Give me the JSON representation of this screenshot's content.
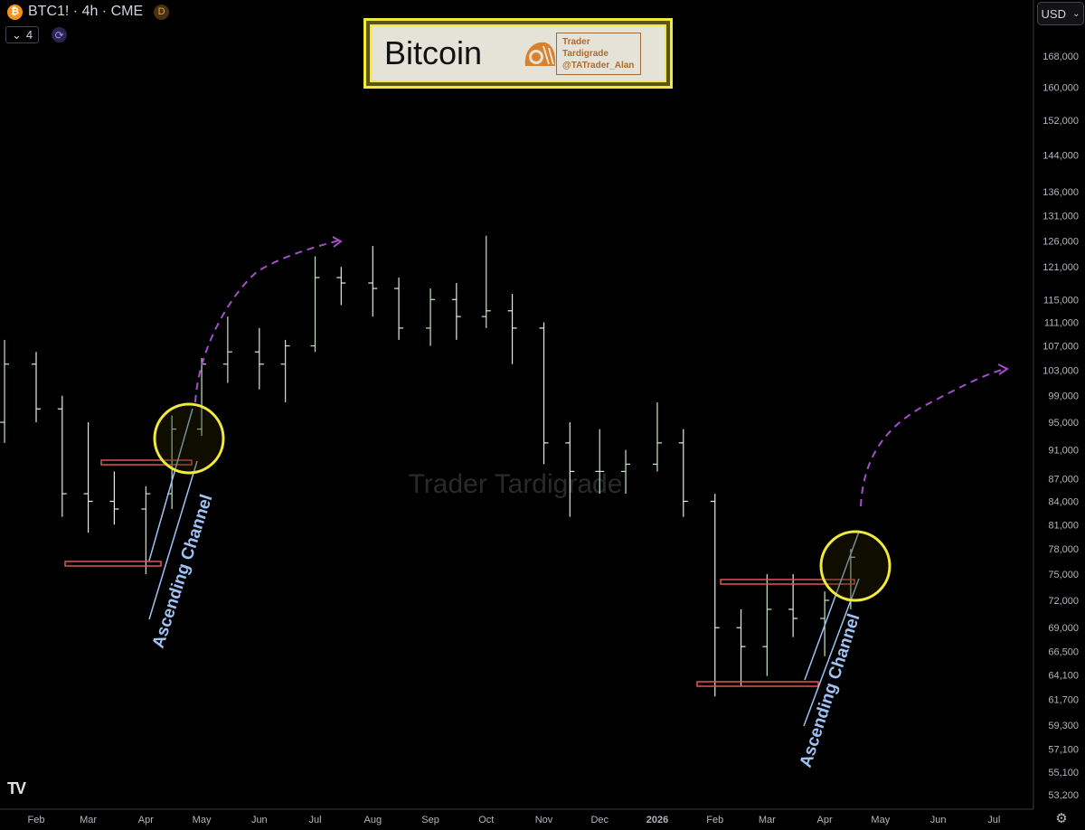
{
  "header": {
    "symbol": "BTC1! · 4h · CME",
    "coin_icon": "bitcoin-icon",
    "badge": "D",
    "collapse_count": "4",
    "currency": "USD"
  },
  "banner": {
    "title": "Bitcoin",
    "author_line1": "Trader Tardigrade",
    "author_line2": "@TATrader_Alan",
    "border_color": "#f2ea3a"
  },
  "watermark": "Trader Tardigrade",
  "annotations": {
    "channel_label_1": "Ascending Channel",
    "channel_label_2": "Ascending Channel",
    "support_color": "#e05555",
    "channel_color": "#9fc3f5",
    "circle_color": "#f2ea3a",
    "arrow_color": "#a64dcc"
  },
  "chart_data": {
    "type": "candlestick",
    "yscale": "log",
    "ylim": [
      52000,
      172000
    ],
    "xlim": [
      "2025-01-13",
      "2026-07-20"
    ],
    "grid": false,
    "y_ticks": [
      168000,
      160000,
      152000,
      144000,
      136000,
      131000,
      126000,
      121000,
      115000,
      111000,
      107000,
      103000,
      99000,
      95000,
      91000,
      87000,
      84000,
      81000,
      78000,
      75000,
      72000,
      69000,
      66500,
      64100,
      61700,
      59300,
      57100,
      55100,
      53200
    ],
    "y_tick_labels": [
      "168,000",
      "160,000",
      "152,000",
      "144,000",
      "136,000",
      "131,000",
      "126,000",
      "121,000",
      "115,000",
      "111,000",
      "107,000",
      "103,000",
      "99,000",
      "95,000",
      "91,000",
      "87,000",
      "84,000",
      "81,000",
      "78,000",
      "75,000",
      "72,000",
      "69,000",
      "66,500",
      "64,100",
      "61,700",
      "59,300",
      "57,100",
      "55,100",
      "53,200"
    ],
    "x_ticks": [
      {
        "date": "2025-02-01",
        "label": "Feb"
      },
      {
        "date": "2025-03-01",
        "label": "Mar"
      },
      {
        "date": "2025-04-01",
        "label": "Apr"
      },
      {
        "date": "2025-05-01",
        "label": "May"
      },
      {
        "date": "2025-06-01",
        "label": "Jun"
      },
      {
        "date": "2025-07-01",
        "label": "Jul"
      },
      {
        "date": "2025-08-01",
        "label": "Aug"
      },
      {
        "date": "2025-09-01",
        "label": "Sep"
      },
      {
        "date": "2025-10-01",
        "label": "Oct"
      },
      {
        "date": "2025-11-01",
        "label": "Nov"
      },
      {
        "date": "2025-12-01",
        "label": "Dec"
      },
      {
        "date": "2026-01-01",
        "label": "2026"
      },
      {
        "date": "2026-02-01",
        "label": "Feb"
      },
      {
        "date": "2026-03-01",
        "label": "Mar"
      },
      {
        "date": "2026-04-01",
        "label": "Apr"
      },
      {
        "date": "2026-05-01",
        "label": "May"
      },
      {
        "date": "2026-06-01",
        "label": "Jun"
      },
      {
        "date": "2026-07-01",
        "label": "Jul"
      }
    ],
    "candles": [
      [
        "2025-01-15",
        95000,
        108000,
        92000,
        104000
      ],
      [
        "2025-02-01",
        104000,
        106000,
        95000,
        97000
      ],
      [
        "2025-02-15",
        97000,
        99000,
        82000,
        85000
      ],
      [
        "2025-03-01",
        85000,
        95000,
        80000,
        84000
      ],
      [
        "2025-03-15",
        84000,
        88000,
        81000,
        83000
      ],
      [
        "2025-04-01",
        83000,
        86000,
        75000,
        85000
      ],
      [
        "2025-04-15",
        85000,
        96000,
        83000,
        94000
      ],
      [
        "2025-05-01",
        94000,
        105000,
        93000,
        104000
      ],
      [
        "2025-05-15",
        104000,
        112000,
        101000,
        106000
      ],
      [
        "2025-06-01",
        106000,
        110000,
        100000,
        104000
      ],
      [
        "2025-06-15",
        104000,
        108000,
        98000,
        107000
      ],
      [
        "2025-07-01",
        107000,
        123000,
        106000,
        119000
      ],
      [
        "2025-07-15",
        119000,
        121000,
        114000,
        118000
      ],
      [
        "2025-08-01",
        118000,
        125000,
        112000,
        117000
      ],
      [
        "2025-08-15",
        117000,
        119000,
        108000,
        110000
      ],
      [
        "2025-09-01",
        110000,
        117000,
        107000,
        115000
      ],
      [
        "2025-09-15",
        115000,
        118000,
        108000,
        112000
      ],
      [
        "2025-10-01",
        112000,
        127000,
        110000,
        113000
      ],
      [
        "2025-10-15",
        113000,
        116000,
        104000,
        110000
      ],
      [
        "2025-11-01",
        110000,
        111000,
        89000,
        92000
      ],
      [
        "2025-11-15",
        92000,
        95000,
        82000,
        88000
      ],
      [
        "2025-12-01",
        88000,
        94000,
        85000,
        88000
      ],
      [
        "2025-12-15",
        88000,
        91000,
        85000,
        89000
      ],
      [
        "2026-01-01",
        89000,
        98000,
        88000,
        92000
      ],
      [
        "2026-01-15",
        92000,
        94000,
        82000,
        84000
      ],
      [
        "2026-02-01",
        84000,
        85000,
        62000,
        69000
      ],
      [
        "2026-02-15",
        69000,
        71000,
        63000,
        67000
      ],
      [
        "2026-03-01",
        67000,
        75000,
        64000,
        71000
      ],
      [
        "2026-03-15",
        71000,
        75000,
        68000,
        70000
      ],
      [
        "2026-04-01",
        70000,
        73000,
        66000,
        72000
      ],
      [
        "2026-04-15",
        72000,
        78000,
        71000,
        77000
      ]
    ],
    "support_levels": [
      89500,
      76000,
      74500,
      63000
    ]
  }
}
